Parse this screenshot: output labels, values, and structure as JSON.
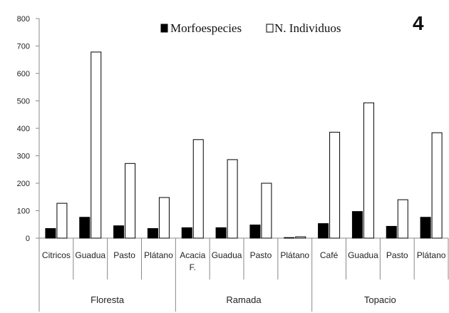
{
  "chart_data": {
    "type": "bar",
    "panel_label": "4",
    "ylim": [
      0,
      800
    ],
    "yticks": [
      0,
      100,
      200,
      300,
      400,
      500,
      600,
      700,
      800
    ],
    "legend_position": "top-center",
    "grid": false,
    "groups": [
      {
        "name": "Floresta",
        "categories": [
          "Citricos",
          "Guadua",
          "Pasto",
          "Plátano"
        ]
      },
      {
        "name": "Ramada",
        "categories": [
          "Acacia F.",
          "Guadua",
          "Pasto",
          "Plátano"
        ]
      },
      {
        "name": "Topacio",
        "categories": [
          "Café",
          "Guadua",
          "Pasto",
          "Plátano"
        ]
      }
    ],
    "series": [
      {
        "name": "Morfoespecies",
        "color": "#000000",
        "values": [
          35,
          76,
          45,
          35,
          38,
          38,
          48,
          2,
          53,
          97,
          43,
          76
        ]
      },
      {
        "name": "N. Individuos",
        "color": "#ffffff",
        "values": [
          127,
          678,
          272,
          148,
          359,
          286,
          200,
          5,
          386,
          493,
          140,
          384
        ]
      }
    ]
  }
}
